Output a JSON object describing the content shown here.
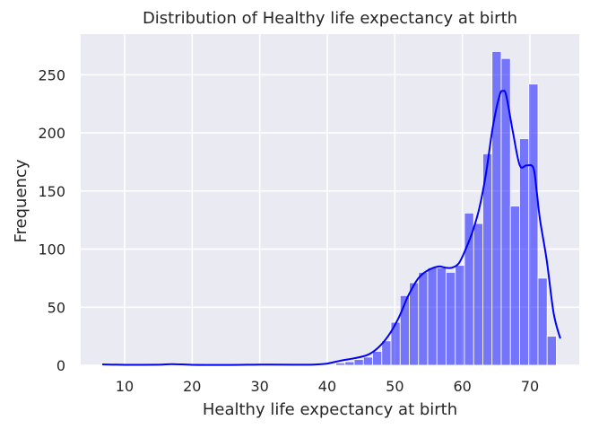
{
  "chart_data": {
    "type": "bar",
    "title": "Distribution of Healthy life expectancy at birth",
    "xlabel": "Healthy life expectancy at birth",
    "ylabel": "Frequency",
    "xlim": [
      3.5,
      77.3
    ],
    "ylim": [
      0,
      285
    ],
    "grid": true,
    "xticks": [
      10,
      20,
      30,
      40,
      50,
      60,
      70
    ],
    "yticks": [
      0,
      50,
      100,
      150,
      200,
      250
    ],
    "bar_color": "#0000ff",
    "bar_alpha": 0.5,
    "kde_color": "#0000ff",
    "background": "#eaeaf2",
    "bins": [
      {
        "x0": 41.27,
        "x1": 42.63,
        "value": 2
      },
      {
        "x0": 42.63,
        "x1": 43.99,
        "value": 3
      },
      {
        "x0": 43.99,
        "x1": 45.35,
        "value": 5
      },
      {
        "x0": 45.35,
        "x1": 46.71,
        "value": 7
      },
      {
        "x0": 46.71,
        "x1": 48.07,
        "value": 12
      },
      {
        "x0": 48.07,
        "x1": 49.43,
        "value": 21
      },
      {
        "x0": 49.43,
        "x1": 50.79,
        "value": 37
      },
      {
        "x0": 50.79,
        "x1": 52.15,
        "value": 60
      },
      {
        "x0": 52.15,
        "x1": 53.51,
        "value": 71
      },
      {
        "x0": 53.51,
        "x1": 54.87,
        "value": 80
      },
      {
        "x0": 54.87,
        "x1": 56.23,
        "value": 84
      },
      {
        "x0": 56.23,
        "x1": 57.59,
        "value": 84
      },
      {
        "x0": 57.59,
        "x1": 58.95,
        "value": 80
      },
      {
        "x0": 58.95,
        "x1": 60.31,
        "value": 86
      },
      {
        "x0": 60.31,
        "x1": 61.67,
        "value": 131
      },
      {
        "x0": 61.67,
        "x1": 63.03,
        "value": 122
      },
      {
        "x0": 63.03,
        "x1": 64.39,
        "value": 182
      },
      {
        "x0": 64.39,
        "x1": 65.75,
        "value": 270
      },
      {
        "x0": 65.75,
        "x1": 67.11,
        "value": 264
      },
      {
        "x0": 67.11,
        "x1": 68.47,
        "value": 137
      },
      {
        "x0": 68.47,
        "x1": 69.83,
        "value": 195
      },
      {
        "x0": 69.83,
        "x1": 71.19,
        "value": 242
      },
      {
        "x0": 71.19,
        "x1": 72.55,
        "value": 75
      },
      {
        "x0": 72.55,
        "x1": 73.91,
        "value": 25
      }
    ],
    "kde": {
      "x": [
        6.7,
        10,
        15,
        17,
        20,
        25,
        30,
        35,
        38,
        40,
        42,
        44,
        46,
        47.5,
        49,
        50.5,
        52,
        53.5,
        55,
        56.5,
        57.5,
        58.5,
        59.5,
        60.5,
        61.5,
        62.5,
        63.5,
        64.5,
        65.5,
        66,
        66.5,
        67.5,
        68.5,
        69.5,
        70.5,
        71,
        71.5,
        72.5,
        73.5,
        74.5
      ],
      "y": [
        0.8,
        0.4,
        0.5,
        1,
        0.4,
        0.3,
        0.6,
        0.5,
        0.6,
        1.5,
        4,
        6,
        9,
        15,
        25,
        40,
        60,
        75,
        82,
        85,
        84,
        84,
        88,
        100,
        115,
        135,
        165,
        205,
        232,
        236,
        232,
        200,
        172,
        172,
        170,
        150,
        125,
        90,
        45,
        23
      ]
    }
  }
}
